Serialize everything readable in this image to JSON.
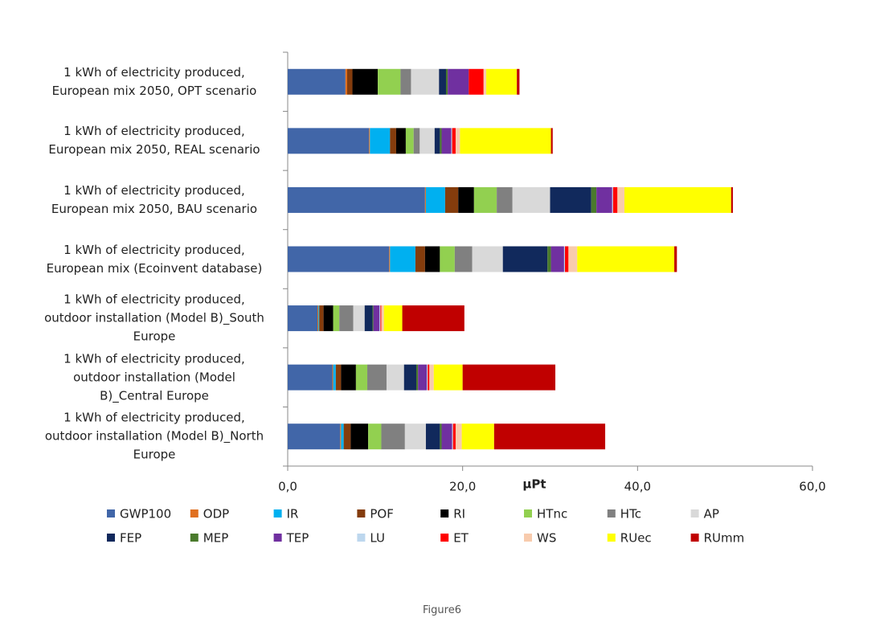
{
  "chart_data": {
    "type": "stacked-barh",
    "x_label": "µPt",
    "categories": [
      "1 kWh of electricity produced,\nEuropean mix 2050, OPT scenario",
      "1 kWh of electricity produced,\nEuropean mix 2050, REAL scenario",
      "1 kWh of electricity produced,\nEuropean mix 2050, BAU scenario",
      "1 kWh of electricity produced,\nEuropean mix (Ecoinvent database)",
      "1 kWh of electricity produced,\noutdoor installation (Model B)_South\nEurope",
      "1 kWh of electricity produced,\noutdoor installation (Model\nB)_Central Europe",
      "1 kWh of electricity produced,\noutdoor installation (Model B)_North\nEurope"
    ],
    "series": [
      {
        "name": "GWP100",
        "color": "#4166a8",
        "values": [
          6.6,
          9.3,
          15.7,
          11.6,
          3.4,
          5.1,
          6.0
        ]
      },
      {
        "name": "ODP",
        "color": "#e07020",
        "values": [
          0.2,
          0.1,
          0.1,
          0.1,
          0.1,
          0.1,
          0.1
        ]
      },
      {
        "name": "IR",
        "color": "#00b0f0",
        "values": [
          0,
          2.3,
          2.2,
          2.9,
          0.1,
          0.3,
          0.3
        ]
      },
      {
        "name": "POF",
        "color": "#843c0c",
        "values": [
          0.6,
          0.7,
          1.5,
          1.1,
          0.5,
          0.6,
          0.8
        ]
      },
      {
        "name": "RI",
        "color": "#000000",
        "values": [
          2.9,
          1.1,
          1.8,
          1.7,
          1.1,
          1.7,
          2.0
        ]
      },
      {
        "name": "HTnc",
        "color": "#92d050",
        "values": [
          2.6,
          0.9,
          2.6,
          1.7,
          0.7,
          1.3,
          1.5
        ]
      },
      {
        "name": "HTc",
        "color": "#808080",
        "values": [
          1.2,
          0.7,
          1.8,
          2.0,
          1.6,
          2.2,
          2.7
        ]
      },
      {
        "name": "AP",
        "color": "#d9d9d9",
        "values": [
          3.2,
          1.7,
          4.3,
          3.5,
          1.3,
          2.0,
          2.4
        ]
      },
      {
        "name": "FEP",
        "color": "#11295c",
        "values": [
          0.8,
          0.6,
          4.7,
          5.1,
          0.9,
          1.4,
          1.6
        ]
      },
      {
        "name": "MEP",
        "color": "#4a7a2c",
        "values": [
          0.2,
          0.2,
          0.6,
          0.4,
          0.1,
          0.2,
          0.2
        ]
      },
      {
        "name": "TEP",
        "color": "#7030a0",
        "values": [
          2.4,
          1.1,
          1.8,
          1.5,
          0.7,
          1.0,
          1.2
        ]
      },
      {
        "name": "LU",
        "color": "#bdd7ee",
        "values": [
          0,
          0.1,
          0.1,
          0.1,
          0.1,
          0.1,
          0.1
        ]
      },
      {
        "name": "ET",
        "color": "#ff0000",
        "values": [
          1.7,
          0.4,
          0.5,
          0.4,
          0.1,
          0.2,
          0.3
        ]
      },
      {
        "name": "WS",
        "color": "#f8cbad",
        "values": [
          0.3,
          0.5,
          0.8,
          1.0,
          0.3,
          0.5,
          0.7
        ]
      },
      {
        "name": "RUec",
        "color": "#ffff00",
        "values": [
          3.5,
          10.4,
          12.2,
          11.1,
          2.1,
          3.3,
          3.7
        ]
      },
      {
        "name": "RUmm",
        "color": "#c00000",
        "values": [
          0.3,
          0.2,
          0.2,
          0.3,
          7.1,
          10.6,
          12.7
        ]
      }
    ],
    "xlim": [
      0,
      60
    ],
    "xticks": [
      {
        "value": 0,
        "label": "0,0"
      },
      {
        "value": 20,
        "label": "20,0"
      },
      {
        "value": 40,
        "label": "40,0"
      },
      {
        "value": 60,
        "label": "60,0"
      }
    ],
    "legend": "bottom"
  },
  "caption": "Figure6"
}
